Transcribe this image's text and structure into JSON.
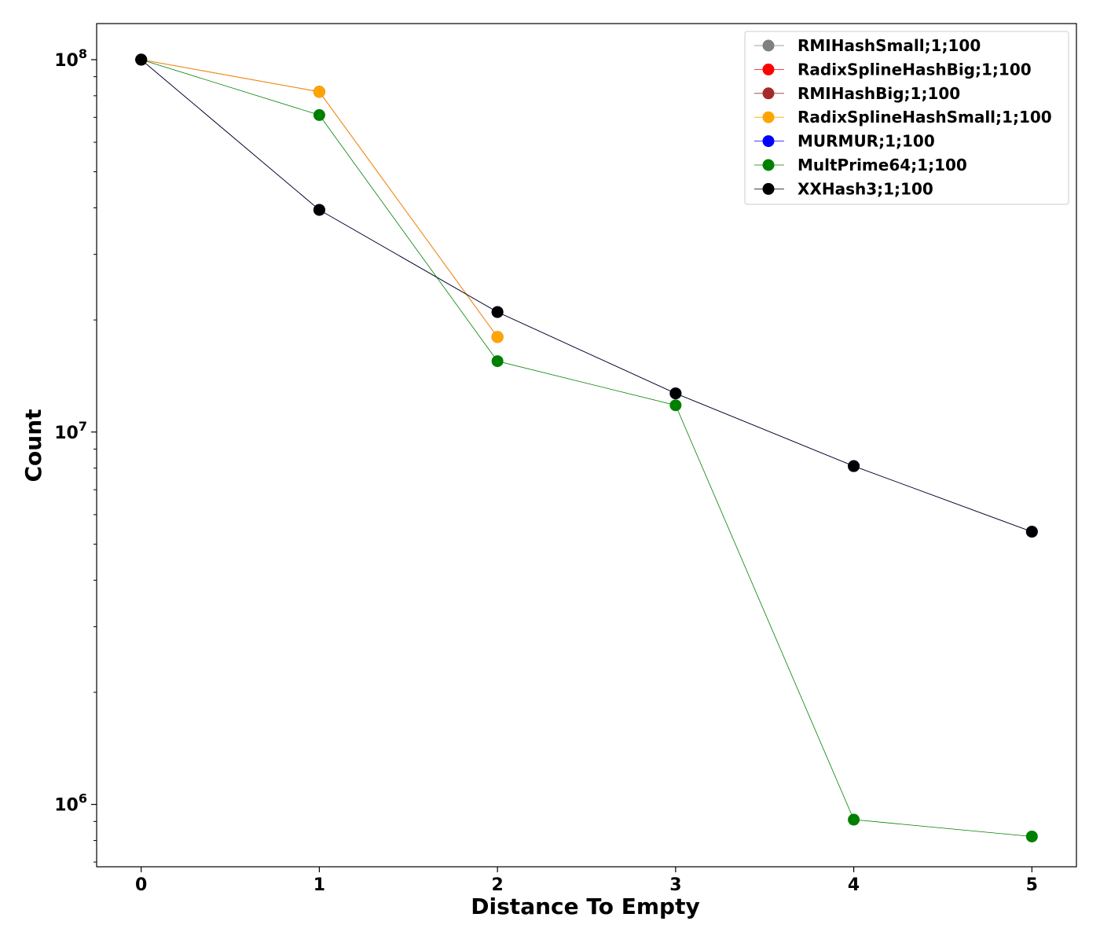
{
  "chart_data": {
    "type": "line",
    "title": "",
    "xlabel": "Distance To Empty",
    "ylabel": "Count",
    "y_scale": "log",
    "ylim": [
      680000,
      125000000
    ],
    "xlim": [
      -0.25,
      5.25
    ],
    "x_ticks": [
      0,
      1,
      2,
      3,
      4,
      5
    ],
    "y_major_ticks": [
      1000000,
      10000000,
      100000000
    ],
    "y_major_tick_labels": [
      {
        "base": "10",
        "exp": "6"
      },
      {
        "base": "10",
        "exp": "7"
      },
      {
        "base": "10",
        "exp": "8"
      }
    ],
    "grid": false,
    "legend_position": "top-right",
    "series": [
      {
        "name": "RMIHashSmall;1;100",
        "color": "#808080",
        "x": [
          0,
          1,
          2
        ],
        "values": [
          100000000,
          82000000,
          18000000
        ]
      },
      {
        "name": "RadixSplineHashBig;1;100",
        "color": "#ff0000",
        "x": [
          0,
          1,
          2
        ],
        "values": [
          100000000,
          82000000,
          18000000
        ]
      },
      {
        "name": "RMIHashBig;1;100",
        "color": "#a52a2a",
        "x": [
          0,
          1,
          2
        ],
        "values": [
          100000000,
          82000000,
          18000000
        ]
      },
      {
        "name": "RadixSplineHashSmall;1;100",
        "color": "#ffa500",
        "x": [
          0,
          1,
          2
        ],
        "values": [
          100000000,
          82000000,
          18000000
        ]
      },
      {
        "name": "MURMUR;1;100",
        "color": "#0000ff",
        "x": [
          0,
          1,
          2,
          3,
          4,
          5
        ],
        "values": [
          100000000,
          39500000,
          21000000,
          12700000,
          8100000,
          5400000
        ]
      },
      {
        "name": "MultPrime64;1;100",
        "color": "#008000",
        "x": [
          0,
          1,
          2,
          3,
          4,
          5
        ],
        "values": [
          100000000,
          71000000,
          15500000,
          11800000,
          910000,
          820000
        ]
      },
      {
        "name": "XXHash3;1;100",
        "color": "#000000",
        "x": [
          0,
          1,
          2,
          3,
          4,
          5
        ],
        "values": [
          100000000,
          39500000,
          21000000,
          12700000,
          8100000,
          5400000
        ]
      }
    ]
  }
}
